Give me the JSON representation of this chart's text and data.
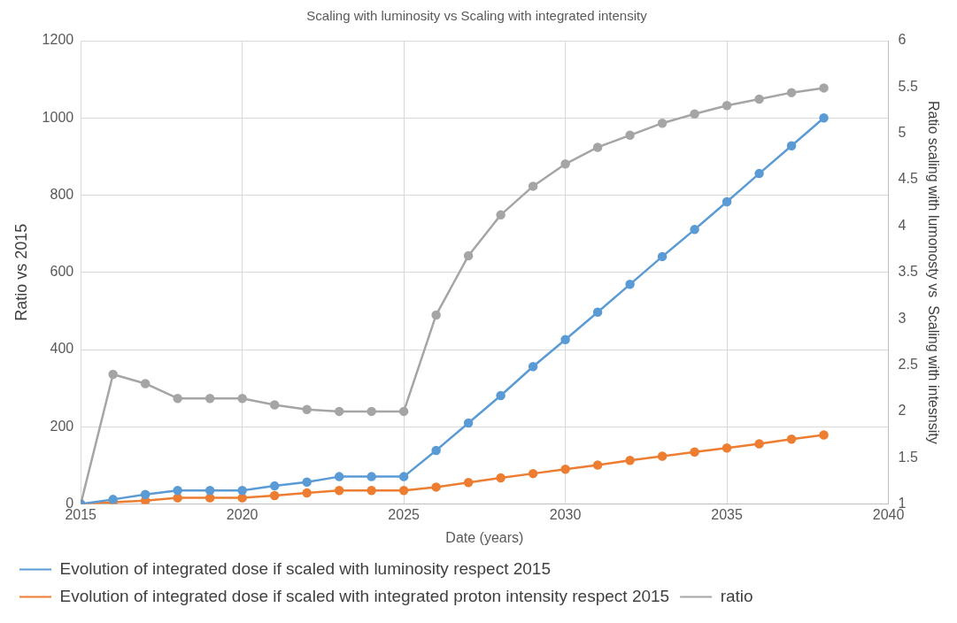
{
  "chart_data": {
    "type": "line",
    "title": "Scaling with luminosity vs Scaling with integrated intensity",
    "xlabel": "Date (years)",
    "ylabel": "Ratio vs 2015",
    "y2label": "Ratio scaling with lumonosty vs  Scaling with intesnsity",
    "x": [
      2015,
      2016,
      2017,
      2018,
      2019,
      2020,
      2021,
      2022,
      2023,
      2024,
      2025,
      2026,
      2027,
      2028,
      2029,
      2030,
      2031,
      2032,
      2033,
      2034,
      2035,
      2036,
      2037,
      2038
    ],
    "series": [
      {
        "name": "Evolution of integrated dose if scaled with luminosity respect 2015",
        "color": "#5b9bd5",
        "values": [
          0,
          12,
          25,
          35,
          35,
          35,
          47,
          57,
          71,
          71,
          71,
          139,
          210,
          281,
          356,
          426,
          497,
          569,
          641,
          711,
          783,
          856,
          928,
          1000
        ]
      },
      {
        "name": "Evolution of integrated dose if scaled with integrated proton intensity respect 2015",
        "color": "#ed7d31",
        "values": [
          0,
          5,
          9,
          16,
          16,
          16,
          22,
          29,
          35,
          35,
          35,
          44,
          56,
          68,
          79,
          90,
          101,
          113,
          124,
          135,
          145,
          156,
          168,
          179
        ]
      },
      {
        "name": "ratio",
        "color": "#a5a5a5",
        "axis": "y2",
        "values": [
          1,
          2.4,
          2.3,
          2.14,
          2.14,
          2.14,
          2.07,
          2.02,
          2,
          2,
          2,
          3.04,
          3.68,
          4.12,
          4.43,
          4.67,
          4.85,
          4.98,
          5.11,
          5.21,
          5.3,
          5.37,
          5.44,
          5.49
        ]
      }
    ],
    "xlim": [
      2015,
      2040
    ],
    "xticks": [
      2015,
      2020,
      2025,
      2030,
      2035,
      2040
    ],
    "ylim": [
      0,
      1200
    ],
    "yticks": [
      0,
      200,
      400,
      600,
      800,
      1000,
      1200
    ],
    "y2lim": [
      1,
      6
    ],
    "y2ticks": [
      1,
      1.5,
      2,
      2.5,
      3,
      3.5,
      4,
      4.5,
      5,
      5.5,
      6
    ],
    "grid": true,
    "legend": "bottom",
    "marker": "circle",
    "line_style": "solid"
  }
}
